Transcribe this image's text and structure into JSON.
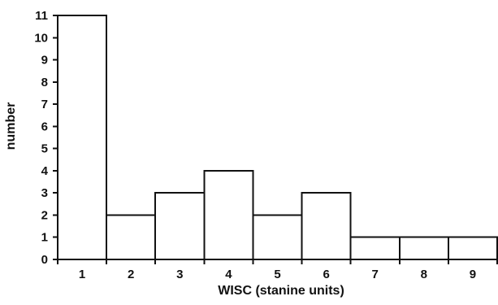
{
  "chart_data": {
    "type": "bar",
    "title": "",
    "xlabel": "WISC (stanine units)",
    "ylabel": "number",
    "categories": [
      "1",
      "2",
      "3",
      "4",
      "5",
      "6",
      "7",
      "8",
      "9"
    ],
    "values": [
      11,
      2,
      3,
      4,
      2,
      3,
      1,
      1,
      1
    ],
    "ylim": [
      0,
      11
    ],
    "yticks": [
      0,
      1,
      2,
      3,
      4,
      5,
      6,
      7,
      8,
      9,
      10,
      11
    ],
    "grid": false,
    "legend": "none",
    "bar_style": "adjacent outlined histogram bars",
    "colors": {
      "bar_fill": "#ffffff",
      "bar_stroke": "#111111",
      "axis": "#111111",
      "text": "#111111"
    }
  }
}
